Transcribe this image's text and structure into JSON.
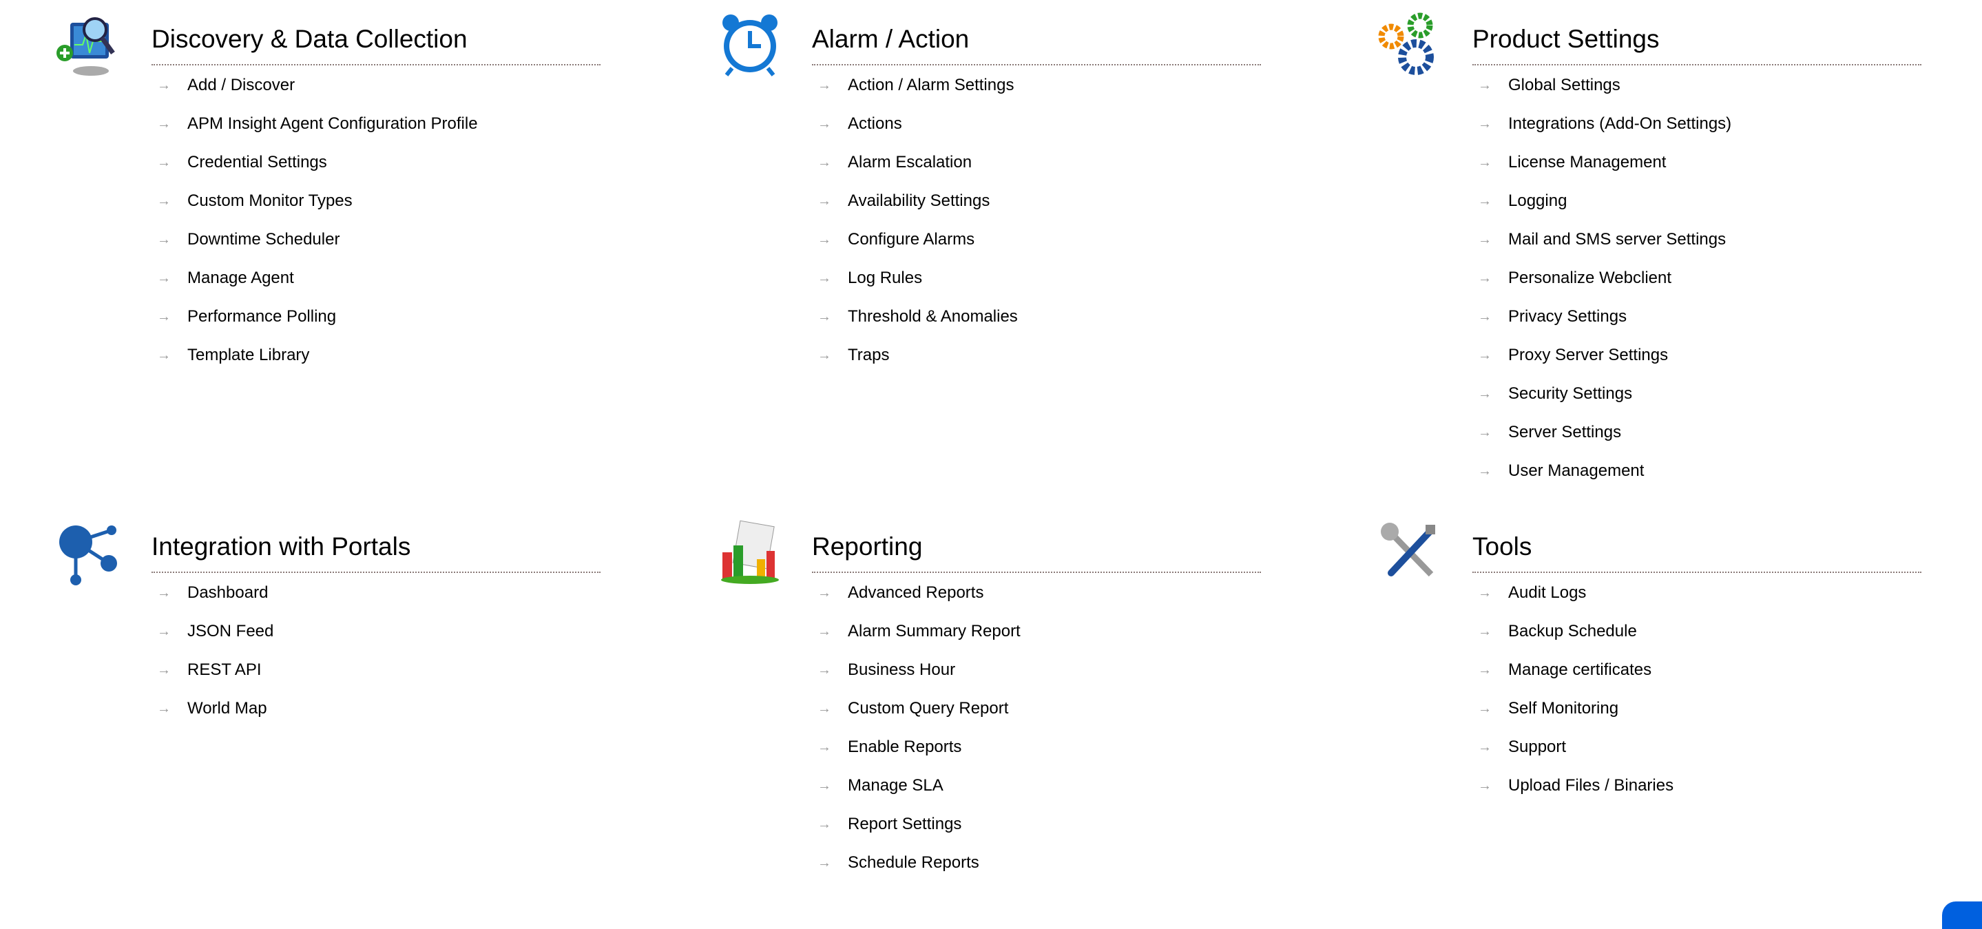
{
  "sections": [
    {
      "title": "Discovery & Data Collection",
      "icon": "monitor-discovery-icon",
      "items": [
        "Add / Discover",
        "APM Insight Agent Configuration Profile",
        "Credential Settings",
        "Custom Monitor Types",
        "Downtime Scheduler",
        "Manage Agent",
        "Performance Polling",
        "Template Library"
      ]
    },
    {
      "title": "Alarm / Action",
      "icon": "alarm-clock-icon",
      "items": [
        "Action / Alarm Settings",
        "Actions",
        "Alarm Escalation",
        "Availability Settings",
        "Configure Alarms",
        "Log Rules",
        "Threshold & Anomalies",
        "Traps"
      ]
    },
    {
      "title": "Product Settings",
      "icon": "gears-icon",
      "items": [
        "Global Settings",
        "Integrations (Add-On Settings)",
        "License Management",
        "Logging",
        "Mail and SMS server Settings",
        "Personalize Webclient",
        "Privacy Settings",
        "Proxy Server Settings",
        "Security Settings",
        "Server Settings",
        "User Management"
      ]
    },
    {
      "title": "Integration with Portals",
      "icon": "share-nodes-icon",
      "items": [
        "Dashboard",
        "JSON Feed",
        "REST API",
        "World Map"
      ]
    },
    {
      "title": "Reporting",
      "icon": "report-chart-icon",
      "items": [
        "Advanced Reports",
        "Alarm Summary Report",
        "Business Hour",
        "Custom Query Report",
        "Enable Reports",
        "Manage SLA",
        "Report Settings",
        "Schedule Reports"
      ]
    },
    {
      "title": "Tools",
      "icon": "tools-icon",
      "items": [
        "Audit Logs",
        "Backup Schedule",
        "Manage certificates",
        "Self Monitoring",
        "Support",
        "Upload Files / Binaries"
      ]
    }
  ],
  "arrow_glyph": "→",
  "colors": {
    "accent": "#0060df",
    "divider": "#8a7a78",
    "arrow": "#999999"
  }
}
